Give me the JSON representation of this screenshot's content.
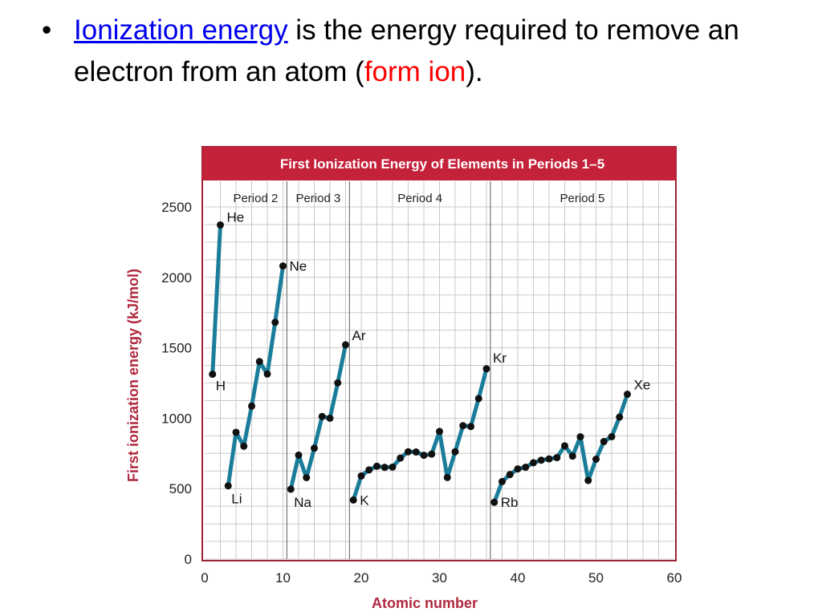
{
  "slide": {
    "bullet": "•",
    "link_text": "Ionization energy",
    "text_1": " is the energy required to remove an electron from an atom (",
    "highlight": "form ion",
    "text_2": ")."
  },
  "colors": {
    "title_bar": "#c4213a",
    "line": "#1a7d9a",
    "point": "#111111",
    "axis_title": "#b0283e",
    "frame": "#9b2335"
  },
  "chart_data": {
    "type": "line",
    "title": "First Ionization Energy of Elements in Periods 1–5",
    "xlabel": "Atomic number",
    "ylabel": "First ionization energy (kJ/mol)",
    "xlim": [
      0,
      60
    ],
    "ylim": [
      0,
      2500
    ],
    "xticks": [
      0,
      10,
      20,
      30,
      40,
      50,
      60
    ],
    "yticks": [
      0,
      500,
      1000,
      1500,
      2000,
      2500
    ],
    "grid": true,
    "period_labels": [
      {
        "label": "Period 2",
        "from": 2.5,
        "to": 10.5
      },
      {
        "label": "Period 3",
        "from": 10.5,
        "to": 18.5
      },
      {
        "label": "Period 4",
        "from": 18.5,
        "to": 36.5
      },
      {
        "label": "Period 5",
        "from": 36.5,
        "to": 60
      }
    ],
    "series": [
      {
        "x": [
          1,
          2
        ],
        "y": [
          1312,
          2372
        ]
      },
      {
        "x": [
          3,
          4,
          5,
          6,
          7,
          8,
          9,
          10
        ],
        "y": [
          520,
          900,
          801,
          1086,
          1402,
          1314,
          1681,
          2081
        ]
      },
      {
        "x": [
          11,
          12,
          13,
          14,
          15,
          16,
          17,
          18
        ],
        "y": [
          496,
          738,
          578,
          787,
          1012,
          1000,
          1251,
          1521
        ]
      },
      {
        "x": [
          19,
          20,
          21,
          22,
          23,
          24,
          25,
          26,
          27,
          28,
          29,
          30,
          31,
          32,
          33,
          34,
          35,
          36
        ],
        "y": [
          419,
          590,
          633,
          659,
          651,
          653,
          717,
          762,
          760,
          737,
          745,
          906,
          579,
          762,
          947,
          941,
          1140,
          1351
        ]
      },
      {
        "x": [
          37,
          38,
          39,
          40,
          41,
          42,
          43,
          44,
          45,
          46,
          47,
          48,
          49,
          50,
          51,
          52,
          53,
          54
        ],
        "y": [
          403,
          550,
          600,
          640,
          652,
          684,
          702,
          711,
          720,
          804,
          731,
          868,
          558,
          709,
          834,
          869,
          1008,
          1170
        ]
      }
    ],
    "annotations": [
      {
        "text": "H",
        "x": 1,
        "y": 1312
      },
      {
        "text": "He",
        "x": 2,
        "y": 2372
      },
      {
        "text": "Li",
        "x": 3,
        "y": 520
      },
      {
        "text": "Ne",
        "x": 10,
        "y": 2081
      },
      {
        "text": "Na",
        "x": 11,
        "y": 496
      },
      {
        "text": "Ar",
        "x": 18,
        "y": 1521
      },
      {
        "text": "K",
        "x": 19,
        "y": 419
      },
      {
        "text": "Kr",
        "x": 36,
        "y": 1351
      },
      {
        "text": "Rb",
        "x": 37,
        "y": 403
      },
      {
        "text": "Xe",
        "x": 54,
        "y": 1170
      }
    ]
  }
}
